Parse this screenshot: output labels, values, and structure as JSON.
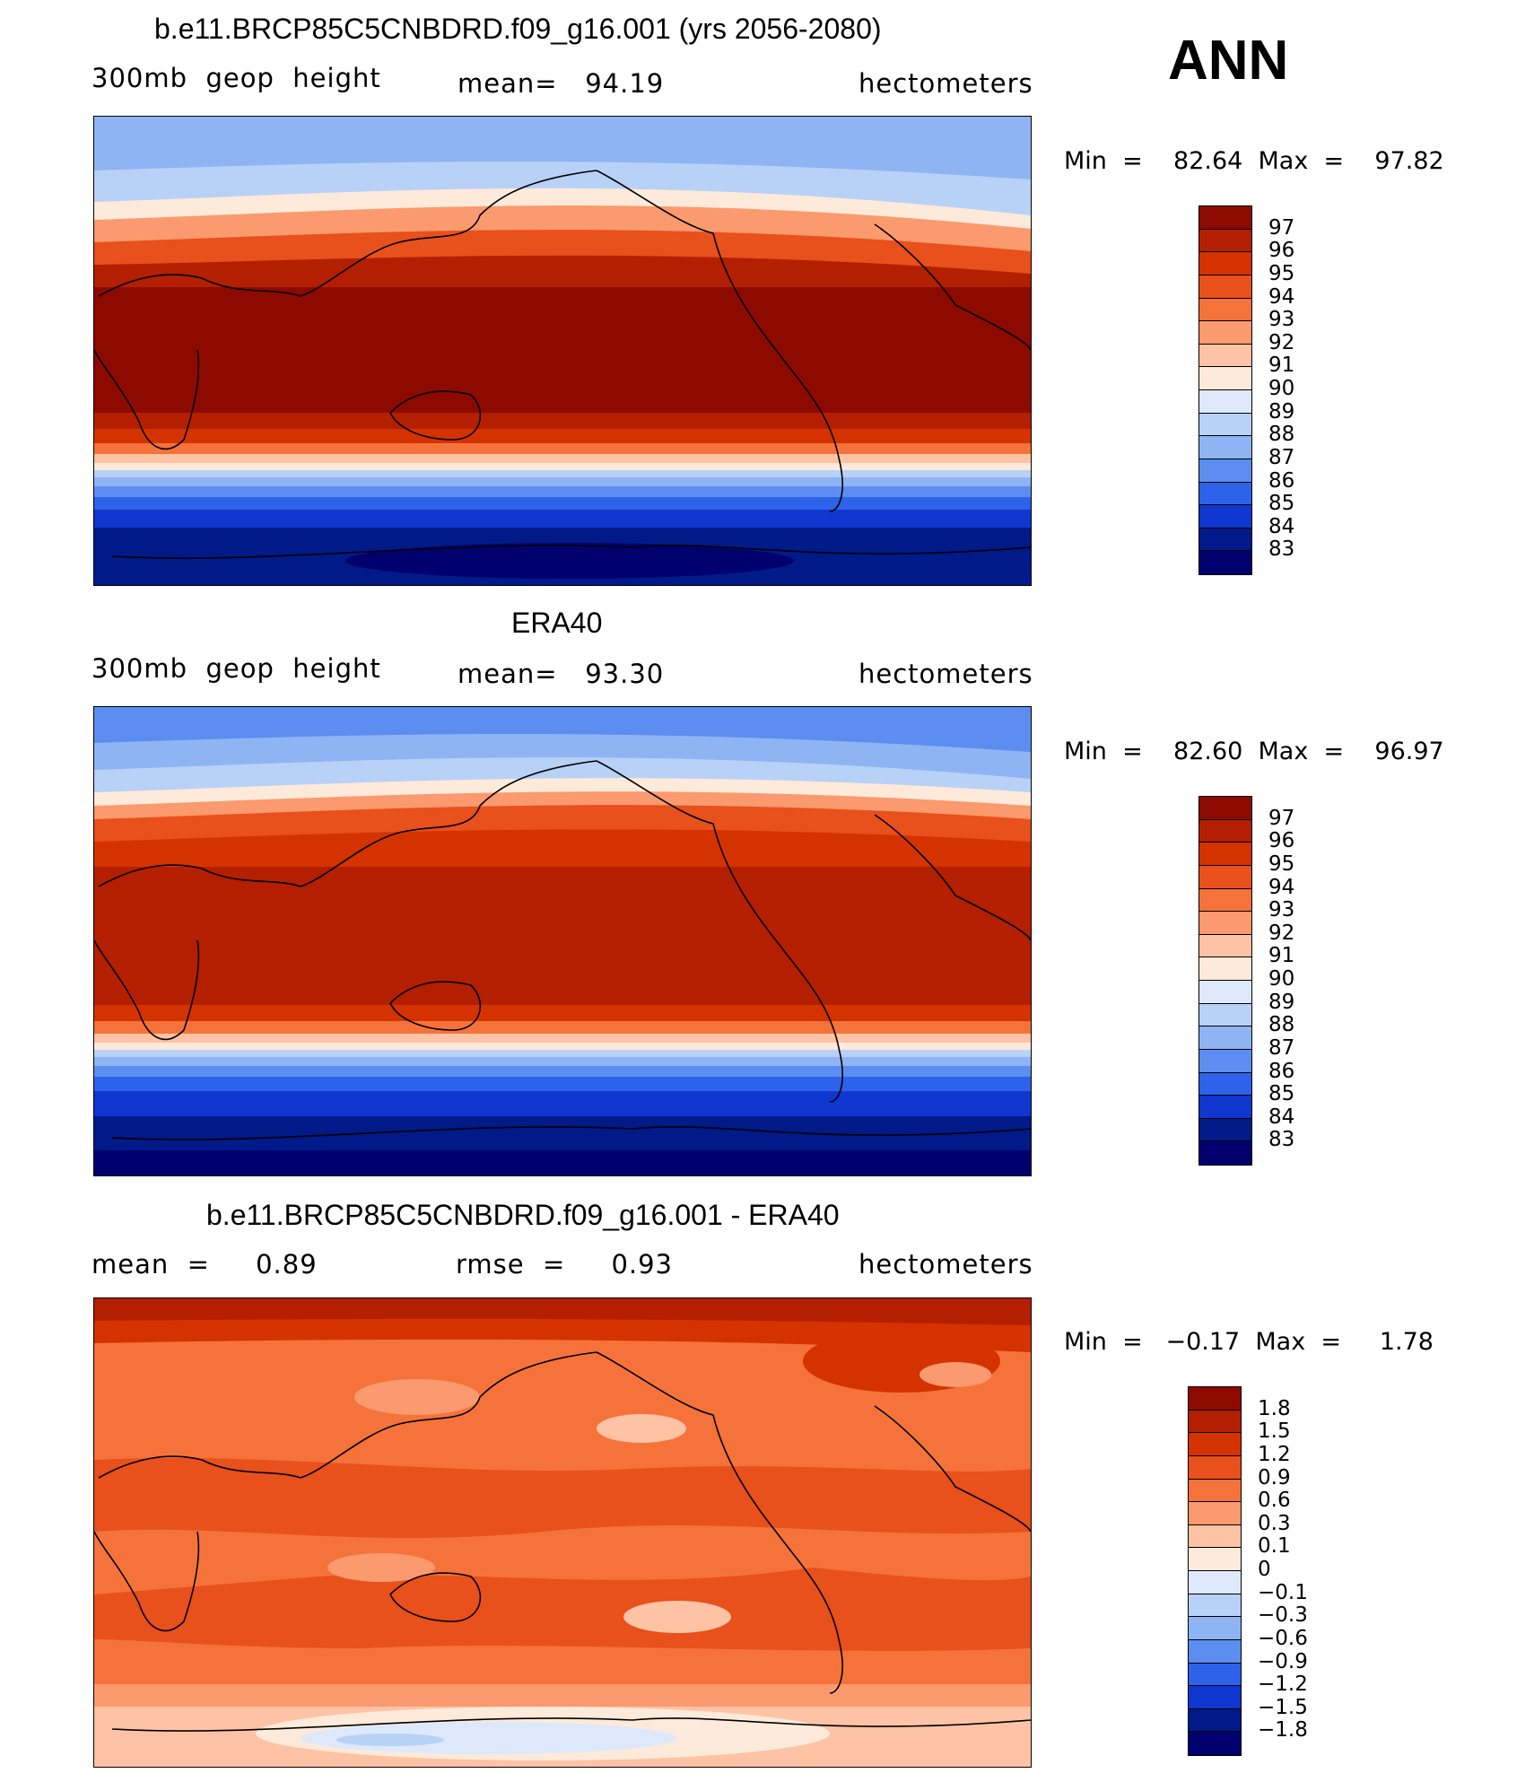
{
  "annotation": "ANN",
  "panels": [
    {
      "title": "b.e11.BRCP85C5CNBDRD.f09_g16.001 (yrs 2056-2080)",
      "left_label": "300mb  geop  height",
      "center_label": "mean=   94.19",
      "right_label": "hectometers",
      "minmax": "Min  =    82.64  Max  =    97.82",
      "levels": [
        "97",
        "96",
        "95",
        "94",
        "93",
        "92",
        "91",
        "90",
        "89",
        "88",
        "87",
        "86",
        "85",
        "84",
        "83"
      ]
    },
    {
      "title": "ERA40",
      "left_label": "300mb  geop  height",
      "center_label": "mean=   93.30",
      "right_label": "hectometers",
      "minmax": "Min  =    82.60  Max  =    96.97",
      "levels": [
        "97",
        "96",
        "95",
        "94",
        "93",
        "92",
        "91",
        "90",
        "89",
        "88",
        "87",
        "86",
        "85",
        "84",
        "83"
      ]
    },
    {
      "title": "b.e11.BRCP85C5CNBDRD.f09_g16.001 - ERA40",
      "left_label": "mean  =     0.89",
      "center_label": "rmse  =     0.93",
      "right_label": "hectometers",
      "minmax": "Min  =   −0.17  Max  =     1.78",
      "levels": [
        "1.8",
        "1.5",
        "1.2",
        "0.9",
        "0.6",
        "0.3",
        "0.1",
        "0",
        "−0.1",
        "−0.3",
        "−0.6",
        "−0.9",
        "−1.2",
        "−1.5",
        "−1.8"
      ]
    }
  ],
  "colors": [
    "#8c0a00",
    "#b31f00",
    "#d43300",
    "#e8501c",
    "#f5733a",
    "#fb9a6e",
    "#fdc3a4",
    "#feeada",
    "#dde9fa",
    "#b8d1f7",
    "#8fb4f4",
    "#5b8ef0",
    "#2d62ea",
    "#1036d0",
    "#001a8a",
    "#00006e"
  ]
}
